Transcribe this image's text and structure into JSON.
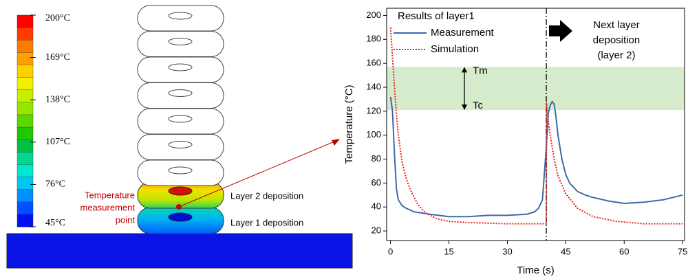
{
  "diagram": {
    "colorbar": {
      "labels": [
        "200°C",
        "169°C",
        "138°C",
        "107°C",
        "76°C",
        "45°C"
      ],
      "colors": [
        "#ff0000",
        "#ff3c00",
        "#ff7a00",
        "#ffa000",
        "#ffd000",
        "#f2f000",
        "#c8ee00",
        "#96e600",
        "#5ad800",
        "#20c800",
        "#00c040",
        "#00d890",
        "#00e8d0",
        "#00c8f0",
        "#0090ff",
        "#0050ff",
        "#0010f0"
      ]
    },
    "layer2_label": "Layer 2 deposition",
    "layer1_label": "Layer 1 deposition",
    "measurement_point_label": [
      "Temperature",
      "measurement",
      "point"
    ]
  },
  "chart_data": {
    "type": "line",
    "legend_title": "Results of layer1",
    "xlabel": "Time (s)",
    "ylabel": "Temperature (°C)",
    "xlim": [
      -1,
      75.5
    ],
    "ylim": [
      12,
      206
    ],
    "xticks": [
      0,
      15,
      30,
      45,
      60,
      75
    ],
    "yticks": [
      20,
      40,
      60,
      80,
      100,
      120,
      140,
      160,
      180,
      200
    ],
    "series": [
      {
        "name": "Measurement",
        "color": "#3d6aa8",
        "x": [
          0,
          0.5,
          1,
          1.5,
          2,
          3,
          4,
          6,
          8,
          10,
          15,
          20,
          25,
          30,
          35,
          37,
          38,
          39,
          40,
          40.5,
          41,
          41.5,
          42,
          42.5,
          43,
          44,
          45,
          46,
          48,
          50,
          52,
          56,
          60,
          65,
          70,
          75
        ],
        "values": [
          132,
          120,
          85,
          55,
          46,
          41,
          39,
          36,
          35,
          34,
          32,
          32,
          33,
          33,
          34,
          36,
          39,
          46,
          90,
          118,
          125,
          128,
          126,
          115,
          100,
          80,
          67,
          60,
          53,
          50,
          48,
          45,
          43,
          44,
          46,
          50
        ]
      },
      {
        "name": "Simulation",
        "color": "#e0201c",
        "x": [
          0,
          0.5,
          1,
          1.5,
          2,
          3,
          4,
          5,
          7,
          9,
          12,
          15,
          20,
          30,
          40,
          40.05,
          40.5,
          41,
          42,
          43,
          45,
          48,
          52,
          58,
          65,
          75
        ],
        "values": [
          190,
          165,
          140,
          118,
          100,
          77,
          64,
          55,
          42,
          35,
          30,
          28,
          27,
          26,
          26,
          127,
          112,
          100,
          80,
          66,
          51,
          39,
          32,
          28,
          26,
          26
        ]
      }
    ],
    "band": {
      "from": 121,
      "to": 157,
      "color": "#d6ebcc"
    },
    "band_labels": {
      "top": "Tm",
      "bottom": "Tc"
    },
    "vline_x": 40,
    "annotation": [
      "Next layer",
      "deposition",
      "(layer 2)"
    ]
  }
}
